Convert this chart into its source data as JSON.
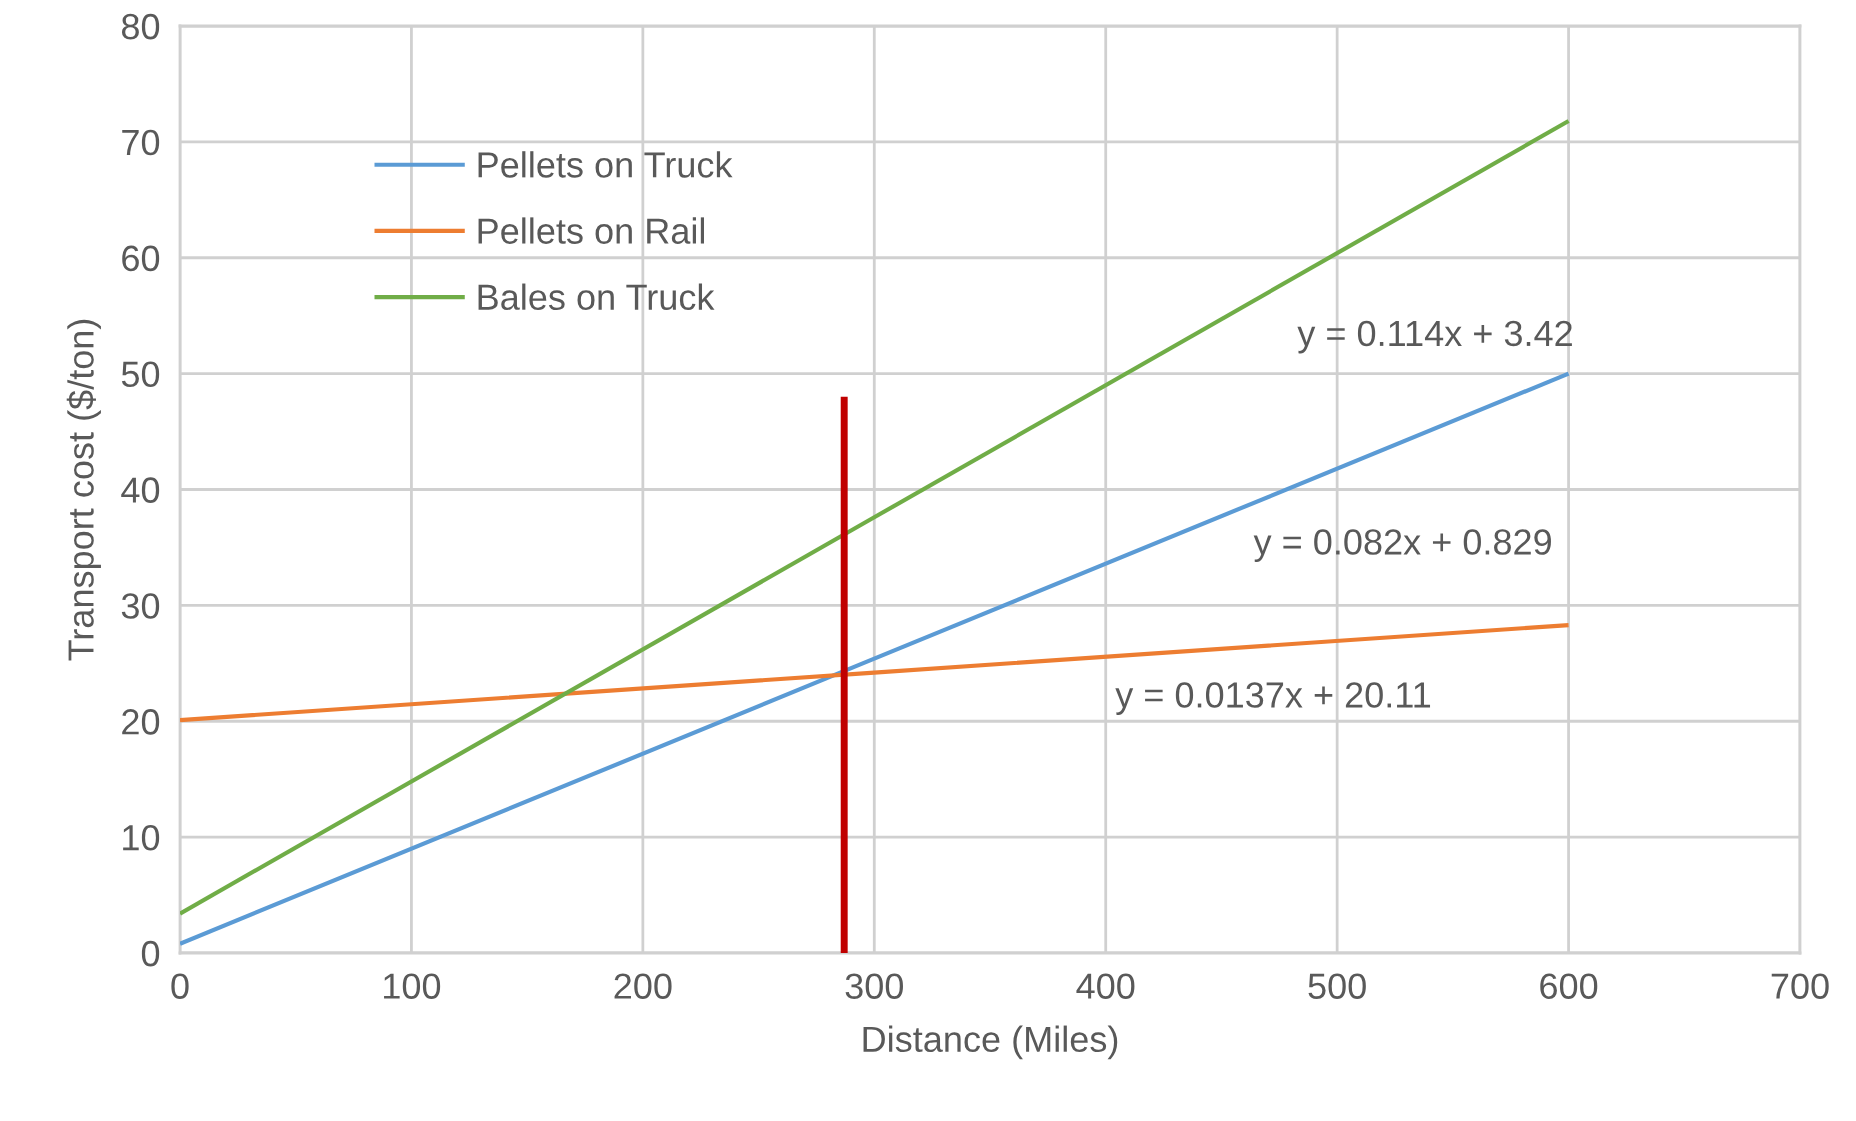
{
  "chart_data": {
    "type": "line",
    "xlabel": "Distance (Miles)",
    "ylabel": "Transport cost ($/ton)",
    "xlim": [
      0,
      700
    ],
    "xticks": [
      0,
      100,
      200,
      300,
      400,
      500,
      600,
      700
    ],
    "ylim": [
      0,
      80
    ],
    "yticks": [
      0,
      10,
      20,
      30,
      40,
      50,
      60,
      70,
      80
    ],
    "grid": true,
    "legend": "top left",
    "marker": "none",
    "line_style": "solid",
    "series": [
      {
        "name": "Pellets on Truck",
        "color": "#5b9bd5",
        "x": [
          0,
          300,
          600
        ],
        "values": [
          0.8,
          25.4,
          50.0
        ]
      },
      {
        "name": "Pellets on Rail",
        "color": "#ed7d31",
        "x": [
          0,
          300,
          600
        ],
        "values": [
          20.1,
          24.2,
          28.3
        ]
      },
      {
        "name": "Bales on Truck",
        "color": "#70ad47",
        "x": [
          0,
          300,
          600
        ],
        "values": [
          3.4,
          37.6,
          71.8
        ]
      },
      {
        "color": "#c00000",
        "x": [
          287,
          287
        ],
        "values": [
          0,
          48
        ]
      }
    ],
    "annotations": [
      "y = 0.114x + 3.42",
      "y = 0.082x + 0.829",
      "y = 0.0137x + 20.11"
    ]
  }
}
